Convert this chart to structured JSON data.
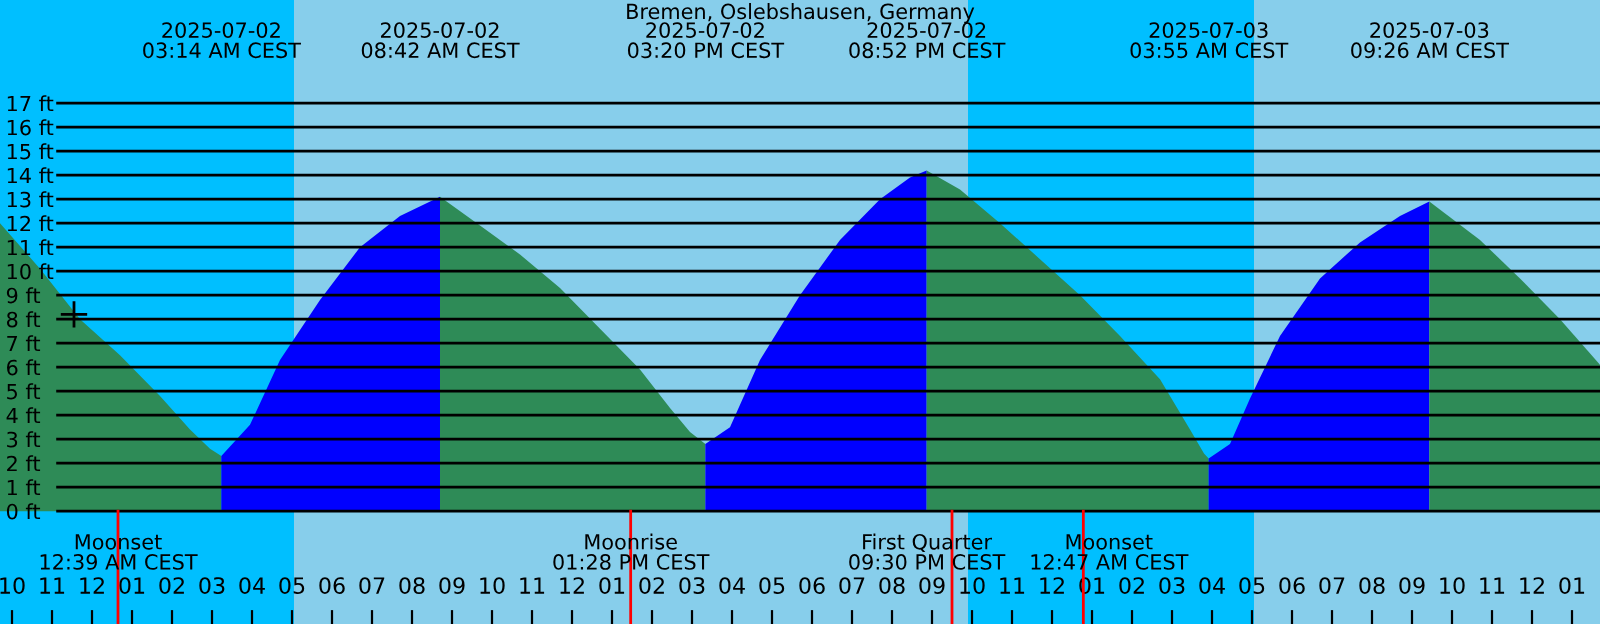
{
  "chart_data": {
    "type": "area",
    "title": "Bremen, Oslebshausen, Germany",
    "xlim": [
      "2025-07-01T21:42",
      "2025-07-03T13:42"
    ],
    "ylim": [
      -4.7,
      21.3
    ],
    "xticks": [
      {
        "value": "2025-07-01T22:00",
        "label": "10"
      },
      {
        "value": "2025-07-01T23:00",
        "label": "11"
      },
      {
        "value": "2025-07-02T00:00",
        "label": "12"
      },
      {
        "value": "2025-07-02T01:00",
        "label": "01"
      },
      {
        "value": "2025-07-02T02:00",
        "label": "02"
      },
      {
        "value": "2025-07-02T03:00",
        "label": "03"
      },
      {
        "value": "2025-07-02T04:00",
        "label": "04"
      },
      {
        "value": "2025-07-02T05:00",
        "label": "05"
      },
      {
        "value": "2025-07-02T06:00",
        "label": "06"
      },
      {
        "value": "2025-07-02T07:00",
        "label": "07"
      },
      {
        "value": "2025-07-02T08:00",
        "label": "08"
      },
      {
        "value": "2025-07-02T09:00",
        "label": "09"
      },
      {
        "value": "2025-07-02T10:00",
        "label": "10"
      },
      {
        "value": "2025-07-02T11:00",
        "label": "11"
      },
      {
        "value": "2025-07-02T12:00",
        "label": "12"
      },
      {
        "value": "2025-07-02T13:00",
        "label": "01"
      },
      {
        "value": "2025-07-02T14:00",
        "label": "02"
      },
      {
        "value": "2025-07-02T15:00",
        "label": "03"
      },
      {
        "value": "2025-07-02T16:00",
        "label": "04"
      },
      {
        "value": "2025-07-02T17:00",
        "label": "05"
      },
      {
        "value": "2025-07-02T18:00",
        "label": "06"
      },
      {
        "value": "2025-07-02T19:00",
        "label": "07"
      },
      {
        "value": "2025-07-02T20:00",
        "label": "08"
      },
      {
        "value": "2025-07-02T21:00",
        "label": "09"
      },
      {
        "value": "2025-07-02T22:00",
        "label": "10"
      },
      {
        "value": "2025-07-02T23:00",
        "label": "11"
      },
      {
        "value": "2025-07-03T00:00",
        "label": "12"
      },
      {
        "value": "2025-07-03T01:00",
        "label": "01"
      },
      {
        "value": "2025-07-03T02:00",
        "label": "02"
      },
      {
        "value": "2025-07-03T03:00",
        "label": "03"
      },
      {
        "value": "2025-07-03T04:00",
        "label": "04"
      },
      {
        "value": "2025-07-03T05:00",
        "label": "05"
      },
      {
        "value": "2025-07-03T06:00",
        "label": "06"
      },
      {
        "value": "2025-07-03T07:00",
        "label": "07"
      },
      {
        "value": "2025-07-03T08:00",
        "label": "08"
      },
      {
        "value": "2025-07-03T09:00",
        "label": "09"
      },
      {
        "value": "2025-07-03T10:00",
        "label": "10"
      },
      {
        "value": "2025-07-03T11:00",
        "label": "11"
      },
      {
        "value": "2025-07-03T12:00",
        "label": "12"
      },
      {
        "value": "2025-07-03T13:00",
        "label": "01"
      }
    ],
    "yticks": [
      {
        "value": 0,
        "label": "0 ft"
      },
      {
        "value": 1,
        "label": "1 ft"
      },
      {
        "value": 2,
        "label": "2 ft"
      },
      {
        "value": 3,
        "label": "3 ft"
      },
      {
        "value": 4,
        "label": "4 ft"
      },
      {
        "value": 5,
        "label": "5 ft"
      },
      {
        "value": 6,
        "label": "6 ft"
      },
      {
        "value": 7,
        "label": "7 ft"
      },
      {
        "value": 8,
        "label": "8 ft"
      },
      {
        "value": 9,
        "label": "9 ft"
      },
      {
        "value": 10,
        "label": "10 ft"
      },
      {
        "value": 11,
        "label": "11 ft"
      },
      {
        "value": 12,
        "label": "12 ft"
      },
      {
        "value": 13,
        "label": "13 ft"
      },
      {
        "value": 14,
        "label": "14 ft"
      },
      {
        "value": 15,
        "label": "15 ft"
      },
      {
        "value": 16,
        "label": "16 ft"
      },
      {
        "value": 17,
        "label": "17 ft"
      }
    ],
    "grid": "y",
    "bands": [
      {
        "axis": "x",
        "from": "2025-07-01T21:42",
        "to": "2025-07-02T05:03",
        "color": "#00bfff"
      },
      {
        "axis": "x",
        "from": "2025-07-02T21:54",
        "to": "2025-07-03T05:03",
        "color": "#00bfff"
      }
    ],
    "ref_lines": [
      {
        "axis": "x",
        "value": "2025-07-02T00:39",
        "label": "Moonset\n12:39 AM CEST",
        "color": "#ff0000"
      },
      {
        "axis": "x",
        "value": "2025-07-02T13:28",
        "label": "Moonrise\n01:28 PM CEST",
        "color": "#ff0000"
      },
      {
        "axis": "x",
        "value": "2025-07-02T21:30",
        "label": "First Quarter\n09:30 PM CEST",
        "color": "#ff0000"
      },
      {
        "axis": "x",
        "value": "2025-07-03T00:47",
        "label": "Moonset\n12:47 AM CEST",
        "color": "#ff0000"
      }
    ],
    "series": [
      {
        "color": "#2e8b57",
        "x": [
          "2025-07-01T21:42",
          "2025-07-01T22:42",
          "2025-07-01T23:42",
          "2025-07-02T00:42",
          "2025-07-02T01:42",
          "2025-07-02T02:27",
          "2025-07-02T02:57",
          "2025-07-02T03:14"
        ],
        "values": [
          12.0,
          10.1,
          8.0,
          6.5,
          4.8,
          3.4,
          2.6,
          2.3
        ]
      },
      {
        "color": "#0000ff",
        "x": [
          "2025-07-02T03:14",
          "2025-07-02T03:57",
          "2025-07-02T04:42",
          "2025-07-02T05:42",
          "2025-07-02T06:42",
          "2025-07-02T07:42",
          "2025-07-02T08:42"
        ],
        "values": [
          2.3,
          3.6,
          6.3,
          8.8,
          11.0,
          12.3,
          13.1
        ]
      },
      {
        "color": "#2e8b57",
        "x": [
          "2025-07-02T08:42",
          "2025-07-02T09:42",
          "2025-07-02T10:42",
          "2025-07-02T11:42",
          "2025-07-02T12:42",
          "2025-07-02T13:42",
          "2025-07-02T14:27",
          "2025-07-02T14:57",
          "2025-07-02T15:20"
        ],
        "values": [
          13.1,
          11.9,
          10.7,
          9.3,
          7.6,
          5.9,
          4.3,
          3.3,
          2.8
        ]
      },
      {
        "color": "#0000ff",
        "x": [
          "2025-07-02T15:20",
          "2025-07-02T15:57",
          "2025-07-02T16:42",
          "2025-07-02T17:42",
          "2025-07-02T18:42",
          "2025-07-02T19:42",
          "2025-07-02T20:27",
          "2025-07-02T20:52"
        ],
        "values": [
          2.8,
          3.5,
          6.3,
          9.0,
          11.3,
          13.0,
          13.9,
          14.2
        ]
      },
      {
        "color": "#2e8b57",
        "x": [
          "2025-07-02T20:52",
          "2025-07-02T21:42",
          "2025-07-02T22:42",
          "2025-07-02T23:42",
          "2025-07-03T00:42",
          "2025-07-03T01:42",
          "2025-07-03T02:42",
          "2025-07-03T03:27",
          "2025-07-03T03:48",
          "2025-07-03T03:55"
        ],
        "values": [
          14.2,
          13.4,
          12.0,
          10.5,
          9.0,
          7.3,
          5.5,
          3.4,
          2.4,
          2.2
        ]
      },
      {
        "color": "#0000ff",
        "x": [
          "2025-07-03T03:55",
          "2025-07-03T04:27",
          "2025-07-03T04:57",
          "2025-07-03T05:42",
          "2025-07-03T06:42",
          "2025-07-03T07:42",
          "2025-07-03T08:42",
          "2025-07-03T09:26"
        ],
        "values": [
          2.2,
          2.8,
          4.7,
          7.3,
          9.7,
          11.2,
          12.3,
          12.9
        ]
      },
      {
        "color": "#2e8b57",
        "x": [
          "2025-07-03T09:26",
          "2025-07-03T10:42",
          "2025-07-03T11:42",
          "2025-07-03T12:42",
          "2025-07-03T13:42"
        ],
        "values": [
          12.9,
          11.3,
          9.7,
          8.0,
          6.1
        ]
      },
      {
        "type": "scatter",
        "marker": "cross",
        "color": "#000000",
        "x": [
          "2025-07-01T23:33"
        ],
        "values": [
          8.2
        ]
      }
    ],
    "annotations": [
      "2025-07-02\n03:14 AM CEST",
      "2025-07-02\n08:42 AM CEST",
      "2025-07-02\n03:20 PM CEST",
      "2025-07-02\n08:52 PM CEST",
      "2025-07-03\n03:55 AM CEST",
      "2025-07-03\n09:26 AM CEST"
    ]
  }
}
